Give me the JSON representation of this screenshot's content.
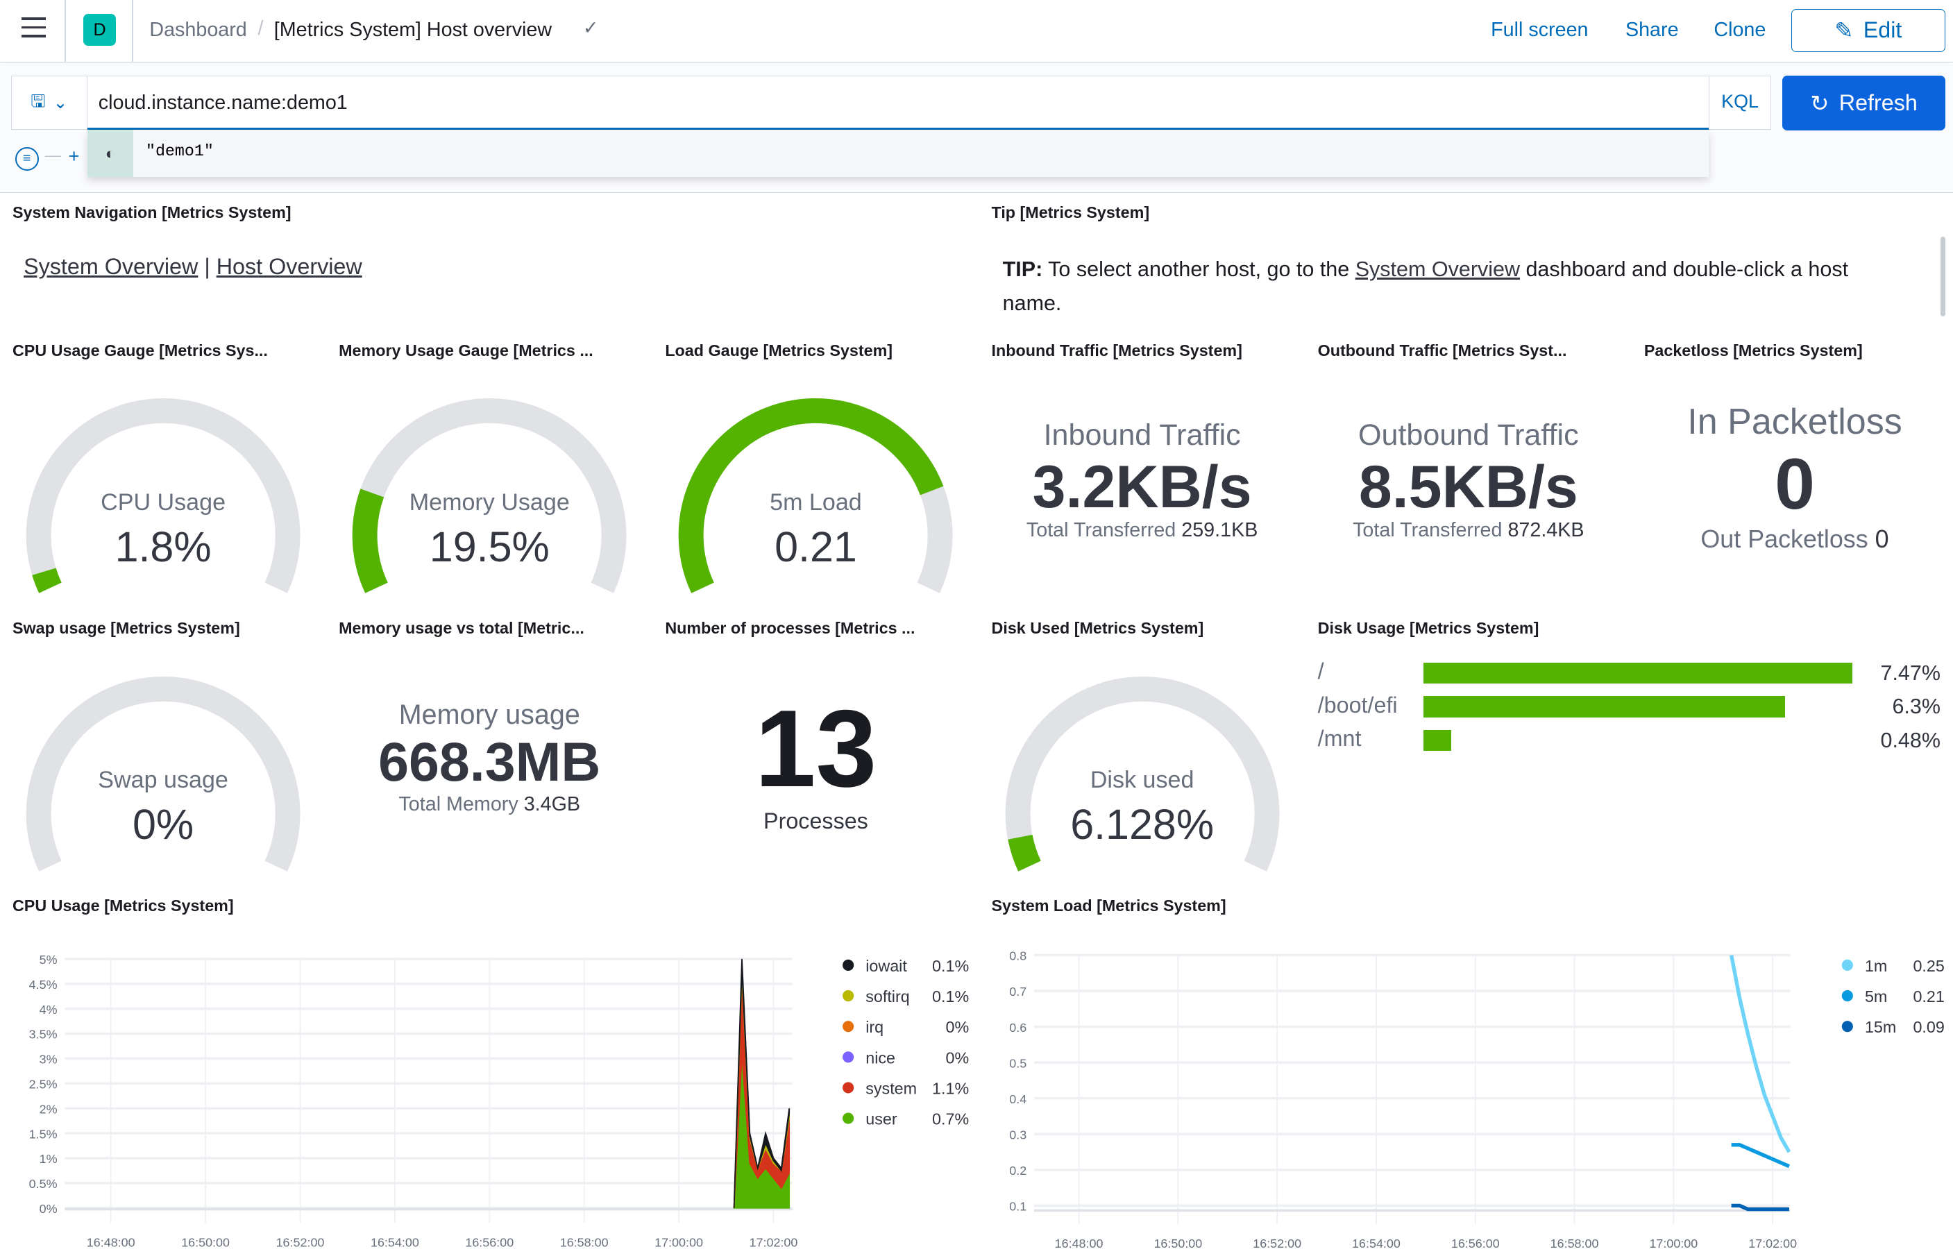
{
  "header": {
    "breadcrumb_root": "Dashboard",
    "title": "[Metrics System] Host overview",
    "space_initial": "D",
    "space_color": "#00bfb3",
    "actions": {
      "full_screen": "Full screen",
      "share": "Share",
      "clone": "Clone",
      "edit": "Edit"
    }
  },
  "query": {
    "value": "cloud.instance.name:demo1",
    "language": "KQL",
    "refresh": "Refresh",
    "suggestion": "\"demo1\"",
    "suggestion_icon": "value-token-icon"
  },
  "panels": {
    "nav": {
      "title": "System Navigation [Metrics System]",
      "link1": "System Overview",
      "sep": "|",
      "link2": "Host Overview"
    },
    "tip": {
      "title": "Tip [Metrics System]",
      "bold": "TIP:",
      "t1": " To select another host, go to the ",
      "link": "System Overview",
      "t2": " dashboard and double-click a host name."
    },
    "cpu_gauge": {
      "title": "CPU Usage Gauge [Metrics Sys...",
      "label": "CPU Usage",
      "value": "1.8%",
      "fill": 0.018
    },
    "mem_gauge": {
      "title": "Memory Usage Gauge [Metrics ...",
      "label": "Memory Usage",
      "value": "19.5%",
      "fill": 0.195
    },
    "load_gauge": {
      "title": "Load Gauge [Metrics System]",
      "label": "5m Load",
      "value": "0.21",
      "fill": 0.8
    },
    "inbound": {
      "title": "Inbound Traffic [Metrics System]",
      "label": "Inbound Traffic",
      "value": "3.2KB/s",
      "sub_label": "Total Transferred",
      "sub_value": "259.1KB"
    },
    "outbound": {
      "title": "Outbound Traffic [Metrics Syst...",
      "label": "Outbound Traffic",
      "value": "8.5KB/s",
      "sub_label": "Total Transferred",
      "sub_value": "872.4KB"
    },
    "packetloss": {
      "title": "Packetloss [Metrics System]",
      "label": "In Packetloss",
      "value": "0",
      "sub_label": "Out Packetloss",
      "sub_value": "0"
    },
    "swap": {
      "title": "Swap usage [Metrics System]",
      "label": "Swap usage",
      "value": "0%",
      "fill": 0
    },
    "mem_total": {
      "title": "Memory usage vs total [Metric...",
      "label": "Memory usage",
      "value": "668.3MB",
      "sub_label": "Total Memory",
      "sub_value": "3.4GB"
    },
    "processes": {
      "title": "Number of processes [Metrics ...",
      "value": "13",
      "label": "Processes"
    },
    "disk_used": {
      "title": "Disk Used [Metrics System]",
      "label": "Disk used",
      "value": "6.128%",
      "fill": 0.06128
    },
    "disk_usage": {
      "title": "Disk Usage [Metrics System]",
      "rows": [
        {
          "name": "/",
          "value": 7.47,
          "label": "7.47%"
        },
        {
          "name": "/boot/efi",
          "value": 6.3,
          "label": "6.3%"
        },
        {
          "name": "/mnt",
          "value": 0.48,
          "label": "0.48%"
        }
      ]
    },
    "cpu_chart": {
      "title": "CPU Usage [Metrics System]"
    },
    "load_chart": {
      "title": "System Load [Metrics System]"
    }
  },
  "colors": {
    "green": "#54b300",
    "gauge_bg": "#e0e2e6",
    "accent": "#006bb8"
  },
  "chart_data": [
    {
      "type": "area",
      "stacked": true,
      "ylim": [
        0,
        5
      ],
      "yticks": [
        "0%",
        "0.5%",
        "1%",
        "1.5%",
        "2%",
        "2.5%",
        "3%",
        "3.5%",
        "4%",
        "4.5%",
        "5%"
      ],
      "xticks": [
        "16:48:00",
        "16:50:00",
        "16:52:00",
        "16:54:00",
        "16:56:00",
        "16:58:00",
        "17:00:00",
        "17:02:00"
      ],
      "x": [
        "17:01:10",
        "17:01:20",
        "17:01:30",
        "17:01:40",
        "17:01:50",
        "17:02:00",
        "17:02:10",
        "17:02:20"
      ],
      "legend": "right",
      "grid": true,
      "series": [
        {
          "name": "user",
          "color": "#54b300",
          "legend_value": "0.7%",
          "values": [
            0,
            3.1,
            0.9,
            0.6,
            0.8,
            0.6,
            0.4,
            0.7
          ]
        },
        {
          "name": "system",
          "color": "#d6331c",
          "legend_value": "1.1%",
          "values": [
            0,
            1.6,
            0.5,
            0.2,
            0.4,
            0.3,
            0.35,
            1.1
          ]
        },
        {
          "name": "nice",
          "color": "#7b61ff",
          "legend_value": "0%",
          "values": [
            0,
            0,
            0,
            0,
            0,
            0,
            0,
            0
          ]
        },
        {
          "name": "irq",
          "color": "#e7700d",
          "legend_value": "0%",
          "values": [
            0,
            0,
            0,
            0,
            0,
            0,
            0,
            0
          ]
        },
        {
          "name": "softirq",
          "color": "#b9b900",
          "legend_value": "0.1%",
          "values": [
            0,
            0.1,
            0.05,
            0,
            0.1,
            0.05,
            0,
            0.1
          ]
        },
        {
          "name": "iowait",
          "color": "#16191f",
          "legend_value": "0.1%",
          "values": [
            0,
            0.2,
            0.05,
            0,
            0.2,
            0.05,
            0.05,
            0.1
          ]
        }
      ]
    },
    {
      "type": "line",
      "ylim": [
        0.09,
        0.8
      ],
      "yticks": [
        "0.1",
        "0.2",
        "0.3",
        "0.4",
        "0.5",
        "0.6",
        "0.7",
        "0.8"
      ],
      "xticks": [
        "16:48:00",
        "16:50:00",
        "16:52:00",
        "16:54:00",
        "16:56:00",
        "16:58:00",
        "17:00:00",
        "17:02:00"
      ],
      "x": [
        "17:01:10",
        "17:01:20",
        "17:01:30",
        "17:01:40",
        "17:01:50",
        "17:02:00",
        "17:02:10",
        "17:02:20"
      ],
      "legend": "right",
      "grid": true,
      "series": [
        {
          "name": "1m",
          "color": "#6dd3f8",
          "legend_value": "0.25",
          "values": [
            0.8,
            0.68,
            0.58,
            0.49,
            0.41,
            0.35,
            0.29,
            0.25
          ]
        },
        {
          "name": "5m",
          "color": "#0a9ae0",
          "legend_value": "0.21",
          "values": [
            0.27,
            0.27,
            0.26,
            0.25,
            0.24,
            0.23,
            0.22,
            0.21
          ]
        },
        {
          "name": "15m",
          "color": "#0061b3",
          "legend_value": "0.09",
          "values": [
            0.1,
            0.1,
            0.09,
            0.09,
            0.09,
            0.09,
            0.09,
            0.09
          ]
        }
      ]
    }
  ]
}
